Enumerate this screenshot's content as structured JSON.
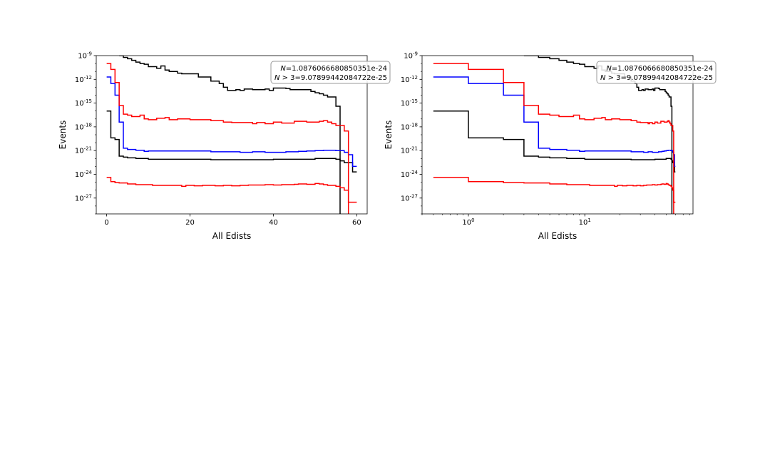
{
  "chart_data": [
    {
      "type": "line",
      "drawstyle": "steps",
      "xscale": "linear",
      "yscale": "log",
      "xlim": [
        -2.5,
        62.5
      ],
      "ylim": [
        1e-29,
        1e-09
      ],
      "xticks": [
        0,
        20,
        40,
        60
      ],
      "xtick_labels": [
        "0",
        "20",
        "40",
        "60"
      ],
      "yticks": [
        1e-09,
        1e-12,
        1e-15,
        1e-18,
        1e-21,
        1e-24,
        1e-27
      ],
      "ytick_labels": [
        "10^-9",
        "10^-12",
        "10^-15",
        "10^-18",
        "10^-21",
        "10^-24",
        "10^-27"
      ],
      "xlabel": "All Edists",
      "ylabel": "Events",
      "annotation": [
        "N=1.0876066680850351e-24",
        "N > 3=9.07899442084722e-25"
      ],
      "annotation_position": "top-right",
      "series": [
        {
          "name": "black-upper",
          "color": "#000000",
          "x": [
            3,
            4,
            5,
            6,
            7,
            8,
            9,
            10,
            12,
            13,
            14,
            15,
            17,
            18,
            20,
            22,
            25,
            27,
            28,
            29,
            31,
            32,
            33,
            35,
            38,
            39,
            40,
            43,
            44,
            48,
            49,
            50,
            51,
            52,
            53,
            55,
            56
          ],
          "y": [
            1e-09,
            6e-10,
            4e-10,
            2.5e-10,
            1.5e-10,
            1e-10,
            8e-11,
            4e-11,
            2.5e-11,
            5e-11,
            1.5e-11,
            1e-11,
            6e-12,
            5e-12,
            5e-12,
            2e-12,
            6e-13,
            3e-13,
            1e-13,
            4e-14,
            5e-14,
            4e-14,
            6e-14,
            5e-14,
            6e-14,
            4e-14,
            8e-14,
            7e-14,
            5e-14,
            5e-14,
            3e-14,
            2e-14,
            1.5e-14,
            1e-14,
            6e-15,
            4e-16,
            1e-30
          ]
        },
        {
          "name": "black-lower",
          "color": "#000000",
          "x": [
            0,
            1,
            2,
            3,
            4,
            5,
            7,
            10,
            15,
            20,
            25,
            30,
            35,
            40,
            45,
            50,
            54,
            55,
            56,
            57,
            58,
            59
          ],
          "y": [
            1e-16,
            4e-20,
            2.5e-20,
            2e-22,
            1.5e-22,
            1.2e-22,
            1e-22,
            8e-23,
            8e-23,
            8e-23,
            7e-23,
            7e-23,
            7e-23,
            8e-23,
            8e-23,
            1e-22,
            1e-22,
            8e-23,
            5e-23,
            3e-23,
            3e-23,
            2e-24
          ]
        },
        {
          "name": "blue",
          "color": "#0000ff",
          "x": [
            0,
            1,
            2,
            3,
            4,
            5,
            7,
            9,
            10,
            15,
            20,
            25,
            32,
            35,
            38,
            41,
            43,
            46,
            48,
            50,
            52,
            55,
            57,
            58,
            59
          ],
          "y": [
            2e-12,
            3e-13,
            1e-14,
            4e-18,
            2e-21,
            1.4e-21,
            1.1e-21,
            8e-22,
            9e-22,
            9e-22,
            9e-22,
            7e-22,
            6e-22,
            7e-22,
            6e-22,
            6e-22,
            7e-22,
            8e-22,
            9e-22,
            1e-21,
            1.1e-21,
            1e-21,
            6e-22,
            3e-22,
            1e-23
          ]
        },
        {
          "name": "red-upper",
          "color": "#ff0000",
          "x": [
            0,
            1,
            2,
            3,
            4,
            5,
            6,
            8,
            9,
            10,
            12,
            14,
            15,
            17,
            20,
            25,
            28,
            30,
            35,
            36,
            38,
            40,
            42,
            45,
            48,
            51,
            52,
            53,
            54,
            55,
            57,
            58
          ],
          "y": [
            1e-10,
            1.8e-11,
            4e-13,
            5e-16,
            4e-17,
            3e-17,
            2e-17,
            3e-17,
            1e-17,
            8e-18,
            1.2e-17,
            1.5e-17,
            8e-18,
            1e-17,
            8e-18,
            6e-18,
            4e-18,
            3.5e-18,
            2.5e-18,
            3.5e-18,
            2.5e-18,
            4e-18,
            3e-18,
            5e-18,
            4e-18,
            5e-18,
            6e-18,
            4e-18,
            2.5e-18,
            1.5e-18,
            3e-19,
            1e-30
          ]
        },
        {
          "name": "red-lower",
          "color": "#ff0000",
          "x": [
            0,
            1,
            2,
            3,
            5,
            7,
            11,
            15,
            18,
            19,
            21,
            23,
            25,
            26,
            28,
            30,
            32,
            34,
            38,
            40,
            42,
            45,
            46,
            48,
            50,
            51,
            52,
            53,
            55,
            56,
            57,
            58,
            59
          ],
          "y": [
            4e-25,
            1.2e-25,
            9e-26,
            8e-26,
            6e-26,
            5e-26,
            4e-26,
            4e-26,
            3e-26,
            4e-26,
            3.5e-26,
            4e-26,
            4e-26,
            3.5e-26,
            4e-26,
            3.5e-26,
            4e-26,
            4.5e-26,
            5e-26,
            4.5e-26,
            5e-26,
            5.5e-26,
            6e-26,
            5.5e-26,
            7e-26,
            6e-26,
            5e-26,
            4e-26,
            3e-26,
            2e-26,
            1e-26,
            3e-28,
            3e-28
          ]
        }
      ]
    },
    {
      "type": "line",
      "drawstyle": "steps",
      "xscale": "log",
      "yscale": "log",
      "xlim": [
        0.4,
        85
      ],
      "ylim": [
        1e-29,
        1e-09
      ],
      "xticks": [
        1,
        10
      ],
      "xtick_labels": [
        "10^0",
        "10^1"
      ],
      "yticks": [
        1e-09,
        1e-12,
        1e-15,
        1e-18,
        1e-21,
        1e-24,
        1e-27
      ],
      "ytick_labels": [
        "10^-9",
        "10^-12",
        "10^-15",
        "10^-18",
        "10^-21",
        "10^-24",
        "10^-27"
      ],
      "xlabel": "All Edists",
      "ylabel": "Events",
      "annotation": [
        "N=1.0876066680850351e-24",
        "N > 3=9.07899442084722e-25"
      ],
      "annotation_position": "top-right",
      "series": [
        {
          "name": "black-upper",
          "color": "#000000",
          "x": [
            3,
            4,
            5,
            6,
            7,
            8,
            9,
            10,
            12,
            13,
            14,
            15,
            17,
            18,
            20,
            22,
            25,
            27,
            28,
            29,
            31,
            32,
            33,
            35,
            38,
            39,
            40,
            43,
            44,
            48,
            49,
            50,
            51,
            52,
            53,
            55,
            56
          ],
          "y": [
            1e-09,
            6e-10,
            4e-10,
            2.5e-10,
            1.5e-10,
            1e-10,
            8e-11,
            4e-11,
            2.5e-11,
            5e-11,
            1.5e-11,
            1e-11,
            6e-12,
            5e-12,
            5e-12,
            2e-12,
            6e-13,
            3e-13,
            1e-13,
            4e-14,
            5e-14,
            4e-14,
            6e-14,
            5e-14,
            6e-14,
            4e-14,
            8e-14,
            7e-14,
            5e-14,
            5e-14,
            3e-14,
            2e-14,
            1.5e-14,
            1e-14,
            6e-15,
            4e-16,
            1e-30
          ]
        },
        {
          "name": "black-lower",
          "color": "#000000",
          "x": [
            0.5,
            1,
            2,
            3,
            4,
            5,
            7,
            10,
            15,
            20,
            25,
            30,
            35,
            40,
            45,
            50,
            54,
            55,
            56,
            57,
            58,
            59
          ],
          "y": [
            1e-16,
            4e-20,
            2.5e-20,
            2e-22,
            1.5e-22,
            1.2e-22,
            1e-22,
            8e-23,
            8e-23,
            8e-23,
            7e-23,
            7e-23,
            7e-23,
            8e-23,
            8e-23,
            1e-22,
            1e-22,
            8e-23,
            5e-23,
            3e-23,
            3e-23,
            2e-24
          ]
        },
        {
          "name": "blue",
          "color": "#0000ff",
          "x": [
            0.5,
            1,
            2,
            3,
            4,
            5,
            7,
            9,
            10,
            15,
            20,
            25,
            32,
            35,
            38,
            41,
            43,
            46,
            48,
            50,
            52,
            55,
            57,
            58,
            59
          ],
          "y": [
            2e-12,
            3e-13,
            1e-14,
            4e-18,
            2e-21,
            1.4e-21,
            1.1e-21,
            8e-22,
            9e-22,
            9e-22,
            9e-22,
            7e-22,
            6e-22,
            7e-22,
            6e-22,
            6e-22,
            7e-22,
            8e-22,
            9e-22,
            1e-21,
            1.1e-21,
            1e-21,
            6e-22,
            3e-22,
            1e-23
          ]
        },
        {
          "name": "red-upper",
          "color": "#ff0000",
          "x": [
            0.5,
            1,
            2,
            3,
            4,
            5,
            6,
            8,
            9,
            10,
            12,
            14,
            15,
            17,
            20,
            25,
            28,
            30,
            35,
            36,
            38,
            40,
            42,
            45,
            48,
            51,
            52,
            53,
            54,
            55,
            57,
            58
          ],
          "y": [
            1e-10,
            1.8e-11,
            4e-13,
            5e-16,
            4e-17,
            3e-17,
            2e-17,
            3e-17,
            1e-17,
            8e-18,
            1.2e-17,
            1.5e-17,
            8e-18,
            1e-17,
            8e-18,
            6e-18,
            4e-18,
            3.5e-18,
            2.5e-18,
            3.5e-18,
            2.5e-18,
            4e-18,
            3e-18,
            5e-18,
            4e-18,
            5e-18,
            6e-18,
            4e-18,
            2.5e-18,
            1.5e-18,
            3e-19,
            1e-30
          ]
        },
        {
          "name": "red-lower",
          "color": "#ff0000",
          "x": [
            0.5,
            1,
            2,
            3,
            5,
            7,
            11,
            15,
            18,
            19,
            21,
            23,
            25,
            26,
            28,
            30,
            32,
            34,
            38,
            40,
            42,
            45,
            46,
            48,
            50,
            51,
            52,
            53,
            55,
            56,
            57,
            58,
            59
          ],
          "y": [
            4e-25,
            1.2e-25,
            9e-26,
            8e-26,
            6e-26,
            5e-26,
            4e-26,
            4e-26,
            3e-26,
            4e-26,
            3.5e-26,
            4e-26,
            4e-26,
            3.5e-26,
            4e-26,
            3.5e-26,
            4e-26,
            4.5e-26,
            5e-26,
            4.5e-26,
            5e-26,
            5.5e-26,
            6e-26,
            5.5e-26,
            7e-26,
            6e-26,
            5e-26,
            4e-26,
            3e-26,
            2e-26,
            1e-26,
            3e-28,
            3e-28
          ]
        }
      ]
    }
  ]
}
